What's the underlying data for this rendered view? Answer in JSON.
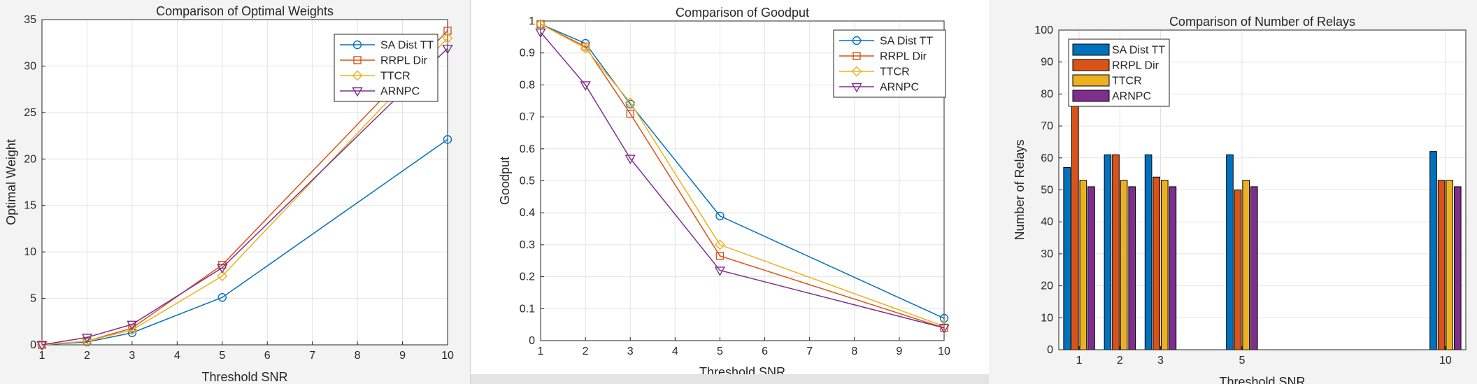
{
  "chart_data": [
    {
      "type": "line",
      "title": "Comparison of Optimal Weights",
      "xlabel": "Threshold SNR",
      "ylabel": "Optimal Weight",
      "xlim": [
        1,
        10
      ],
      "ylim": [
        0,
        35
      ],
      "xticks": [
        1,
        2,
        3,
        4,
        5,
        6,
        7,
        8,
        9,
        10
      ],
      "yticks": [
        0,
        5,
        10,
        15,
        20,
        25,
        30,
        35
      ],
      "grid": true,
      "legend_position": "top-right",
      "x": [
        1,
        2,
        3,
        5,
        10
      ],
      "series": [
        {
          "name": "SA Dist TT",
          "values": [
            0,
            0.3,
            1.3,
            5.1,
            22.1
          ],
          "color": "#0072BD",
          "marker": "circle"
        },
        {
          "name": "RRPL Dir",
          "values": [
            0,
            0.4,
            1.8,
            8.6,
            33.8
          ],
          "color": "#D95319",
          "marker": "square"
        },
        {
          "name": "TTCR",
          "values": [
            0,
            0.4,
            1.6,
            7.4,
            33.0
          ],
          "color": "#EDB120",
          "marker": "diamond"
        },
        {
          "name": "ARNPC",
          "values": [
            0,
            0.8,
            2.2,
            8.3,
            31.9
          ],
          "color": "#7E2F8E",
          "marker": "triangle-down"
        }
      ]
    },
    {
      "type": "line",
      "title": "Comparison of Goodput",
      "xlabel": "Threshold SNR",
      "ylabel": "Goodput",
      "xlim": [
        1,
        10
      ],
      "ylim": [
        0,
        1
      ],
      "xticks": [
        1,
        2,
        3,
        4,
        5,
        6,
        7,
        8,
        9,
        10
      ],
      "yticks": [
        0,
        0.1,
        0.2,
        0.3,
        0.4,
        0.5,
        0.6,
        0.7,
        0.8,
        0.9,
        1
      ],
      "grid": true,
      "legend_position": "top-right",
      "x": [
        1,
        2,
        3,
        5,
        10
      ],
      "series": [
        {
          "name": "SA Dist TT",
          "values": [
            0.99,
            0.93,
            0.74,
            0.39,
            0.07
          ],
          "color": "#0072BD",
          "marker": "circle"
        },
        {
          "name": "RRPL Dir",
          "values": [
            0.99,
            0.92,
            0.71,
            0.265,
            0.04
          ],
          "color": "#D95319",
          "marker": "square"
        },
        {
          "name": "TTCR",
          "values": [
            0.99,
            0.915,
            0.745,
            0.3,
            0.045
          ],
          "color": "#EDB120",
          "marker": "diamond"
        },
        {
          "name": "ARNPC",
          "values": [
            0.965,
            0.8,
            0.57,
            0.22,
            0.04
          ],
          "color": "#7E2F8E",
          "marker": "triangle-down"
        }
      ]
    },
    {
      "type": "bar",
      "title": "Comparison of Number of Relays",
      "xlabel": "Threshold SNR",
      "ylabel": "Number of Relays",
      "xlim": [
        0.5,
        10.5
      ],
      "ylim": [
        0,
        100
      ],
      "xticks": [
        1,
        2,
        3,
        5,
        10
      ],
      "yticks": [
        0,
        10,
        20,
        30,
        40,
        50,
        60,
        70,
        80,
        90,
        100
      ],
      "grid": true,
      "legend_position": "top-left",
      "categories": [
        1,
        2,
        3,
        5,
        10
      ],
      "series": [
        {
          "name": "SA Dist TT",
          "values": [
            57,
            61,
            61,
            61,
            62
          ],
          "color": "#0072BD"
        },
        {
          "name": "RRPL Dir",
          "values": [
            80,
            61,
            54,
            50,
            53
          ],
          "color": "#D95319"
        },
        {
          "name": "TTCR",
          "values": [
            53,
            53,
            53,
            53,
            53
          ],
          "color": "#EDB120"
        },
        {
          "name": "ARNPC",
          "values": [
            51,
            51,
            51,
            51,
            51
          ],
          "color": "#7E2F8E"
        }
      ]
    }
  ]
}
